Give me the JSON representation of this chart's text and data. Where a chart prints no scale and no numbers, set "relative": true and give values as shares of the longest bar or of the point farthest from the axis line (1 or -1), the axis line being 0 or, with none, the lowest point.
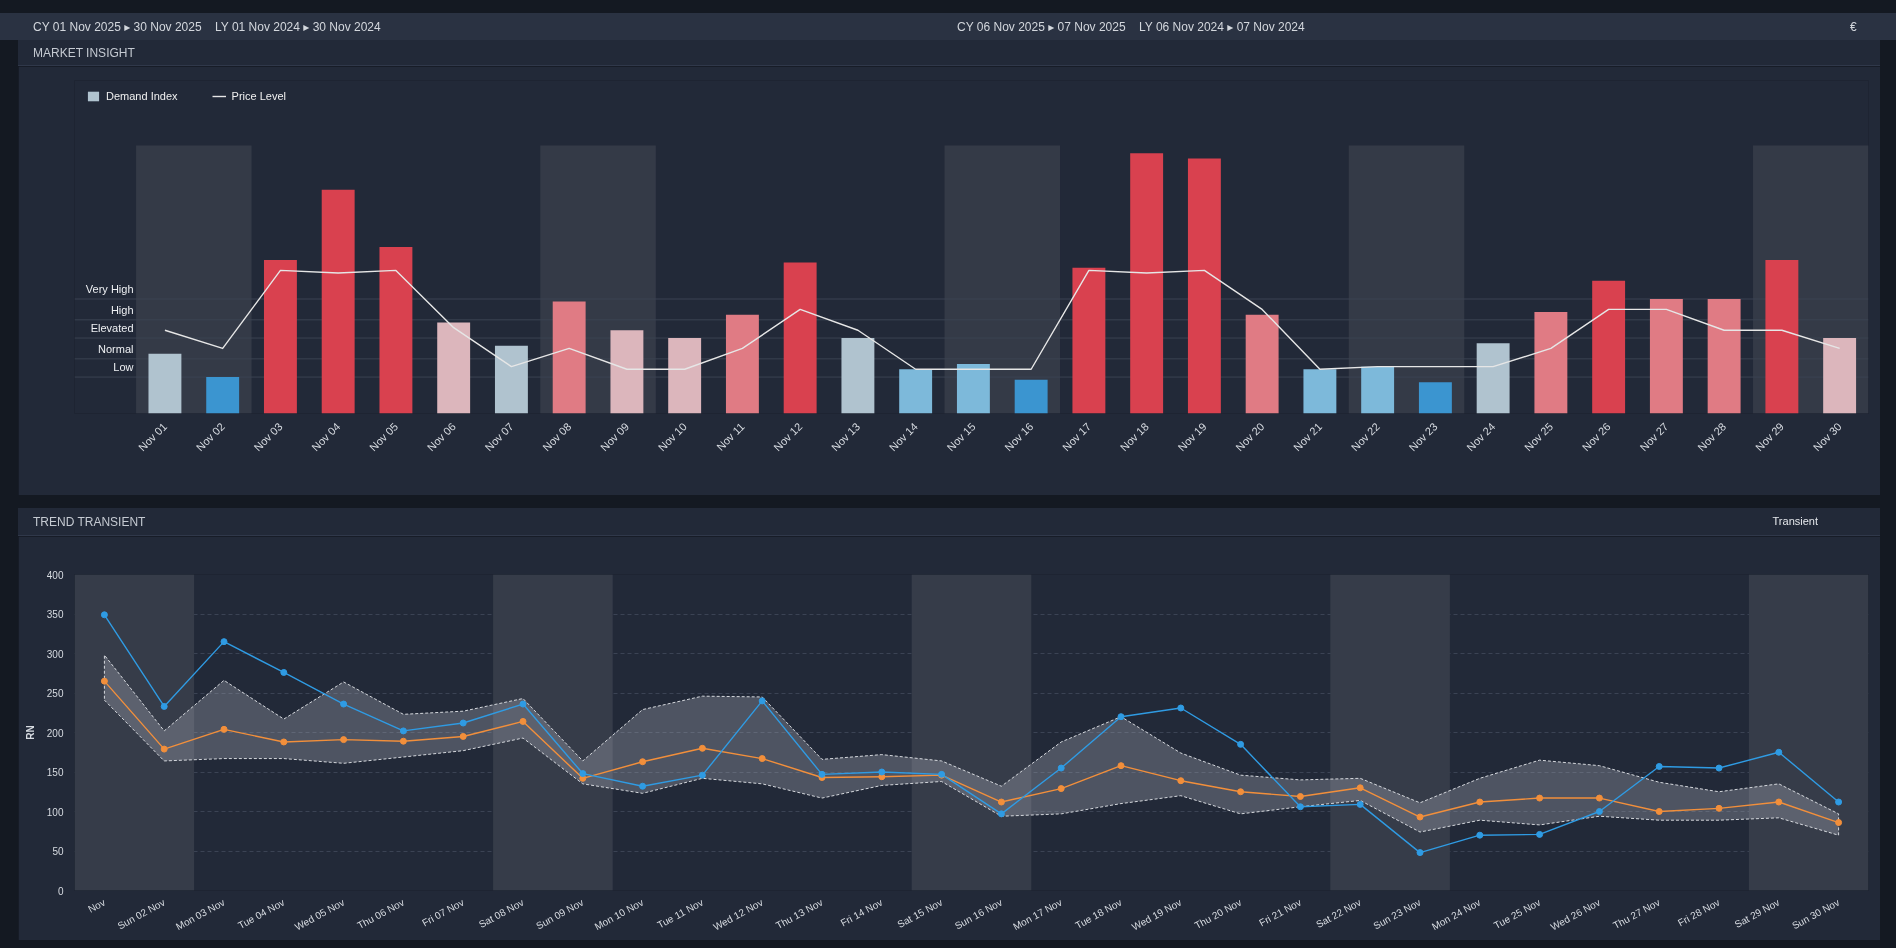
{
  "chart_data": [
    {
      "type": "bar",
      "title": "MARKET INSIGHT",
      "annotations": [
        "CY 01 Nov 2025 ▸ 30 Nov 2025",
        "LY 01 Nov 2024 ▸ 30 Nov 2024",
        "CY 06 Nov 2025 ▸ 07 Nov 2025",
        "LY 06 Nov 2024 ▸ 07 Nov 2024",
        "€"
      ],
      "categories": [
        "Nov 01",
        "Nov 02",
        "Nov 03",
        "Nov 04",
        "Nov 05",
        "Nov 06",
        "Nov 07",
        "Nov 08",
        "Nov 09",
        "Nov 10",
        "Nov 11",
        "Nov 12",
        "Nov 13",
        "Nov 14",
        "Nov 15",
        "Nov 16",
        "Nov 17",
        "Nov 18",
        "Nov 19",
        "Nov 20",
        "Nov 21",
        "Nov 22",
        "Nov 23",
        "Nov 24",
        "Nov 25",
        "Nov 26",
        "Nov 27",
        "Nov 28",
        "Nov 29",
        "Nov 30"
      ],
      "relative": true,
      "series": [
        {
          "name": "Demand Index",
          "type": "bar",
          "colors": [
            "#b0c3cf",
            "#3b95d0",
            "#d9414f",
            "#d9414f",
            "#d9414f",
            "#dcb6bc",
            "#b0c3cf",
            "#e07b84",
            "#dcb6bc",
            "#dcb6bc",
            "#e07b84",
            "#d9414f",
            "#b0c3cf",
            "#7db9da",
            "#7db9da",
            "#3b95d0",
            "#d9414f",
            "#d9414f",
            "#d9414f",
            "#e07b84",
            "#7db9da",
            "#7db9da",
            "#3b95d0",
            "#b0c3cf",
            "#e07b84",
            "#d9414f",
            "#e07b84",
            "#e07b84",
            "#d9414f",
            "#dcb6bc"
          ],
          "values": [
            0.23,
            0.14,
            0.59,
            0.86,
            0.64,
            0.35,
            0.26,
            0.43,
            0.32,
            0.29,
            0.38,
            0.58,
            0.29,
            0.17,
            0.19,
            0.13,
            0.56,
            1,
            0.98,
            0.38,
            0.17,
            0.18,
            0.12,
            0.27,
            0.39,
            0.51,
            0.44,
            0.44,
            0.59,
            0.29
          ]
        },
        {
          "name": "Price Level",
          "type": "line",
          "color": "#e6e6e6",
          "values": [
            0.32,
            0.25,
            0.55,
            0.54,
            0.55,
            0.33,
            0.18,
            0.25,
            0.17,
            0.17,
            0.25,
            0.4,
            0.32,
            0.17,
            0.17,
            0.17,
            0.55,
            0.54,
            0.55,
            0.4,
            0.17,
            0.18,
            0.18,
            0.18,
            0.25,
            0.4,
            0.4,
            0.32,
            0.32,
            0.25
          ]
        }
      ],
      "ref_lines": [
        {
          "axis": "y",
          "value": 0.14,
          "label": "Low",
          "color": "#3b4352"
        },
        {
          "axis": "y",
          "value": 0.21,
          "label": "Normal",
          "color": "#3b4352"
        },
        {
          "axis": "y",
          "value": 0.29,
          "label": "Elevated",
          "color": "#3b4352"
        },
        {
          "axis": "y",
          "value": 0.36,
          "label": "High",
          "color": "#3b4352"
        },
        {
          "axis": "y",
          "value": 0.44,
          "label": "Very High",
          "color": "#3b4352"
        }
      ],
      "bands": [
        {
          "axis": "x",
          "from": "Nov 01",
          "to": "Nov 02",
          "color": "#343a47"
        },
        {
          "axis": "x",
          "from": "Nov 08",
          "to": "Nov 09",
          "color": "#343a47"
        },
        {
          "axis": "x",
          "from": "Nov 15",
          "to": "Nov 16",
          "color": "#343a47"
        },
        {
          "axis": "x",
          "from": "Nov 22",
          "to": "Nov 23",
          "color": "#343a47"
        },
        {
          "axis": "x",
          "from": "Nov 29",
          "to": "Nov 30",
          "color": "#343a47"
        }
      ],
      "legend": "top left"
    },
    {
      "type": "line",
      "title": "TREND TRANSIENT",
      "ylabel": "RN",
      "annotations": [
        "Transient"
      ],
      "categories": [
        "Nov",
        "Sun 02 Nov",
        "Mon 03 Nov",
        "Tue 04 Nov",
        "Wed 05 Nov",
        "Thu 06 Nov",
        "Fri 07 Nov",
        "Sat 08 Nov",
        "Sun 09 Nov",
        "Mon 10 Nov",
        "Tue 11 Nov",
        "Wed 12 Nov",
        "Thu 13 Nov",
        "Fri 14 Nov",
        "Sat 15 Nov",
        "Sun 16 Nov",
        "Mon 17 Nov",
        "Tue 18 Nov",
        "Wed 19 Nov",
        "Thu 20 Nov",
        "Fri 21 Nov",
        "Sat 22 Nov",
        "Sun 23 Nov",
        "Mon 24 Nov",
        "Tue 25 Nov",
        "Wed 26 Nov",
        "Thu 27 Nov",
        "Fri 28 Nov",
        "Sat 29 Nov",
        "Sun 30 Nov"
      ],
      "series": [
        {
          "color": "#f28f3b",
          "values": [
            265,
            179,
            204,
            188,
            191,
            189,
            195,
            214,
            142,
            163,
            180,
            167,
            143,
            144,
            146,
            112,
            129,
            158,
            139,
            125,
            119,
            130,
            93,
            112,
            117,
            117,
            100,
            104,
            112,
            86
          ],
          "lower": [
            241,
            164,
            167,
            167,
            161,
            169,
            177,
            193,
            135,
            123,
            142,
            135,
            117,
            133,
            138,
            94,
            97,
            110,
            120,
            97,
            106,
            114,
            74,
            89,
            83,
            94,
            89,
            89,
            92,
            70
          ],
          "upper": [
            298,
            202,
            266,
            217,
            264,
            223,
            227,
            243,
            164,
            229,
            246,
            245,
            166,
            172,
            164,
            132,
            188,
            220,
            174,
            146,
            140,
            142,
            111,
            142,
            165,
            158,
            137,
            125,
            135,
            97
          ]
        },
        {
          "color": "#2f9be3",
          "values": [
            349,
            233,
            315,
            276,
            236,
            202,
            212,
            236,
            148,
            132,
            146,
            240,
            147,
            150,
            147,
            97,
            155,
            220,
            231,
            185,
            106,
            109,
            48,
            70,
            71,
            100,
            157,
            155,
            175,
            112
          ]
        }
      ],
      "ylim": [
        0,
        400
      ],
      "yticks": [
        0,
        50,
        100,
        150,
        200,
        250,
        300,
        350,
        400
      ],
      "grid": "y",
      "marker": "circle",
      "bands": [
        {
          "axis": "x",
          "from": "Nov",
          "to": "Sun 02 Nov",
          "color": "#363c49"
        },
        {
          "axis": "x",
          "from": "Sat 08 Nov",
          "to": "Sun 09 Nov",
          "color": "#363c49"
        },
        {
          "axis": "x",
          "from": "Sat 15 Nov",
          "to": "Sun 16 Nov",
          "color": "#363c49"
        },
        {
          "axis": "x",
          "from": "Sat 22 Nov",
          "to": "Sun 23 Nov",
          "color": "#363c49"
        },
        {
          "axis": "x",
          "from": "Sat 29 Nov",
          "to": "Sun 30 Nov",
          "color": "#363c49"
        }
      ]
    }
  ]
}
